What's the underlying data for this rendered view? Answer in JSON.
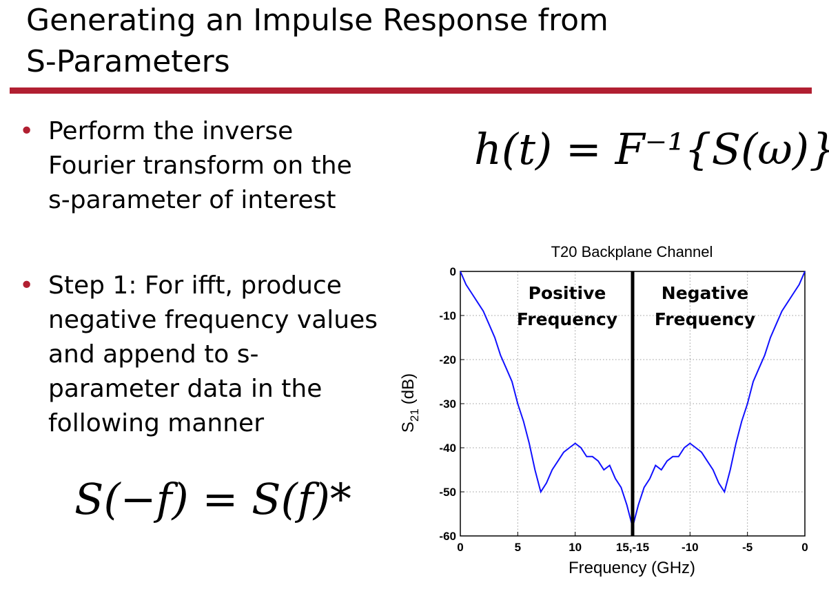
{
  "title": {
    "line1": "Generating an Impulse Response from",
    "line2": "S-Parameters"
  },
  "bullets": [
    {
      "lines": [
        "Perform the inverse",
        "Fourier transform on the",
        "s-parameter of interest"
      ]
    },
    {
      "lines": [
        "Step 1: For ifft, produce",
        "negative frequency values",
        "and append to s-",
        "parameter data in the",
        "following manner"
      ]
    }
  ],
  "equations": {
    "impulse": "h(t) = F⁻¹{S(ω)}",
    "conjugate": "S(−f) = S(f)*"
  },
  "chart_data": {
    "type": "line",
    "title": "T20 Backplane Channel",
    "xlabel": "Frequency (GHz)",
    "ylabel": "S21 (dB)",
    "ylabel_main": "S",
    "ylabel_sub": "21",
    "ylabel_unit": "(dB)",
    "ylim": [
      -60,
      0
    ],
    "grid": true,
    "x_tick_labels": [
      "0",
      "5",
      "10",
      "15,-15",
      "-10",
      "-5",
      "0"
    ],
    "y_tick_labels": [
      "0",
      "-10",
      "-20",
      "-30",
      "-40",
      "-50",
      "-60"
    ],
    "divider_at": "15,-15",
    "annotations": [
      {
        "lines": [
          "Positive",
          "Frequency"
        ]
      },
      {
        "lines": [
          "Negative",
          "Frequency"
        ]
      }
    ],
    "line_color": "#1010ff",
    "series": [
      {
        "values_by_frequency_ghz": {
          "x": [
            0,
            0.5,
            1,
            1.5,
            2,
            2.5,
            3,
            3.5,
            4,
            4.5,
            5,
            5.5,
            6,
            6.5,
            7,
            7.5,
            8,
            8.5,
            9,
            9.5,
            10,
            10.5,
            11,
            11.5,
            12,
            12.5,
            13,
            13.5,
            14,
            14.5,
            15
          ],
          "y": [
            0,
            -3,
            -5,
            -7,
            -9,
            -12,
            -15,
            -19,
            -22,
            -25,
            -30,
            -34,
            -39,
            -45,
            -50,
            -48,
            -45,
            -43,
            -41,
            -40,
            -39,
            -40,
            -42,
            -42,
            -43,
            -45,
            -44,
            -47,
            -49,
            -53,
            -58
          ]
        }
      }
    ]
  }
}
